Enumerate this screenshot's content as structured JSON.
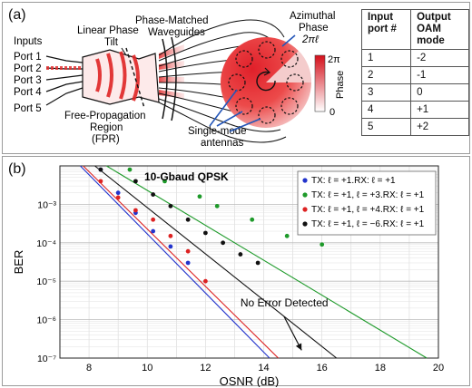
{
  "panel_a": {
    "label": "(a)",
    "inputs_label": "Inputs",
    "ports": [
      "Port 1",
      "Port 2",
      "Port 3",
      "Port 4",
      "Port 5"
    ],
    "linear_phase_label": [
      "Linear Phase",
      "Tilt"
    ],
    "waveguides_label": [
      "Phase-Matched",
      "Waveguides"
    ],
    "azimuthal_label": [
      "Azimuthal",
      "Phase",
      "2πℓ"
    ],
    "fpr_label": [
      "Free-Propagation",
      "Region",
      "(FPR)"
    ],
    "antennas_label": [
      "Single-mode",
      "antennas"
    ],
    "colorbar": {
      "top": "2π",
      "bottom": "0",
      "title": "Phase"
    },
    "table": {
      "headers": [
        "Input port #",
        "Output OAM mode"
      ],
      "rows": [
        [
          "1",
          "-2"
        ],
        [
          "2",
          "-1"
        ],
        [
          "3",
          "0"
        ],
        [
          "4",
          "+1"
        ],
        [
          "5",
          "+2"
        ]
      ]
    }
  },
  "panel_b": {
    "label": "(b)",
    "annotation": "No Error Detected"
  },
  "chart_data": {
    "type": "scatter",
    "title": "10-Gbaud QPSK",
    "xlabel": "OSNR (dB)",
    "ylabel": "BER",
    "xlim": [
      7,
      20
    ],
    "ylim": [
      1e-07,
      0.01
    ],
    "yscale": "log",
    "xticks": [
      "8",
      "10",
      "12",
      "14",
      "16",
      "18",
      "20"
    ],
    "yticks": [
      "10⁻³",
      "10⁻⁴",
      "10⁻⁵",
      "10⁻⁶",
      "10⁻⁷"
    ],
    "grid": true,
    "legend_position": "top-right",
    "series": [
      {
        "name": "TX: ℓ = +1.RX: ℓ = +1",
        "color": "#2233cc",
        "x": [
          8.4,
          9.0,
          9.6,
          10.2,
          10.8,
          11.4
        ],
        "y": [
          0.008,
          0.002,
          0.0006,
          0.0002,
          8e-05,
          3e-05
        ],
        "fit_x": [
          7.7,
          14.2
        ],
        "fit_y": [
          0.01,
          1e-07
        ]
      },
      {
        "name": "TX: ℓ = +1, ℓ = +3.RX: ℓ = +1",
        "color": "#1e9a2a",
        "x": [
          9.4,
          10.6,
          11.8,
          12.4,
          13.6,
          14.8,
          16.0
        ],
        "y": [
          0.008,
          0.004,
          0.0016,
          0.0009,
          0.0004,
          0.00015,
          9e-05
        ],
        "fit_x": [
          8.6,
          19.6
        ],
        "fit_y": [
          0.01,
          1e-07
        ]
      },
      {
        "name": "TX: ℓ = +1, ℓ = +4.RX: ℓ = +1",
        "color": "#dd2222",
        "x": [
          8.4,
          9.0,
          9.6,
          10.2,
          10.8,
          11.4,
          12.0
        ],
        "y": [
          0.004,
          0.0015,
          0.0007,
          0.0004,
          0.00015,
          6e-05,
          1e-05
        ],
        "fit_x": [
          7.8,
          14.5
        ],
        "fit_y": [
          0.01,
          1e-07
        ]
      },
      {
        "name": "TX: ℓ = +1, ℓ = −6.RX: ℓ = +1",
        "color": "#111111",
        "x": [
          8.4,
          9.6,
          10.2,
          10.8,
          11.4,
          12.0,
          12.6,
          13.2,
          13.8
        ],
        "y": [
          0.008,
          0.004,
          0.0018,
          0.0009,
          0.0004,
          0.00018,
          0.0001,
          5e-05,
          3e-05
        ],
        "fit_x": [
          8.2,
          16.5
        ],
        "fit_y": [
          0.01,
          1e-07
        ]
      }
    ]
  }
}
